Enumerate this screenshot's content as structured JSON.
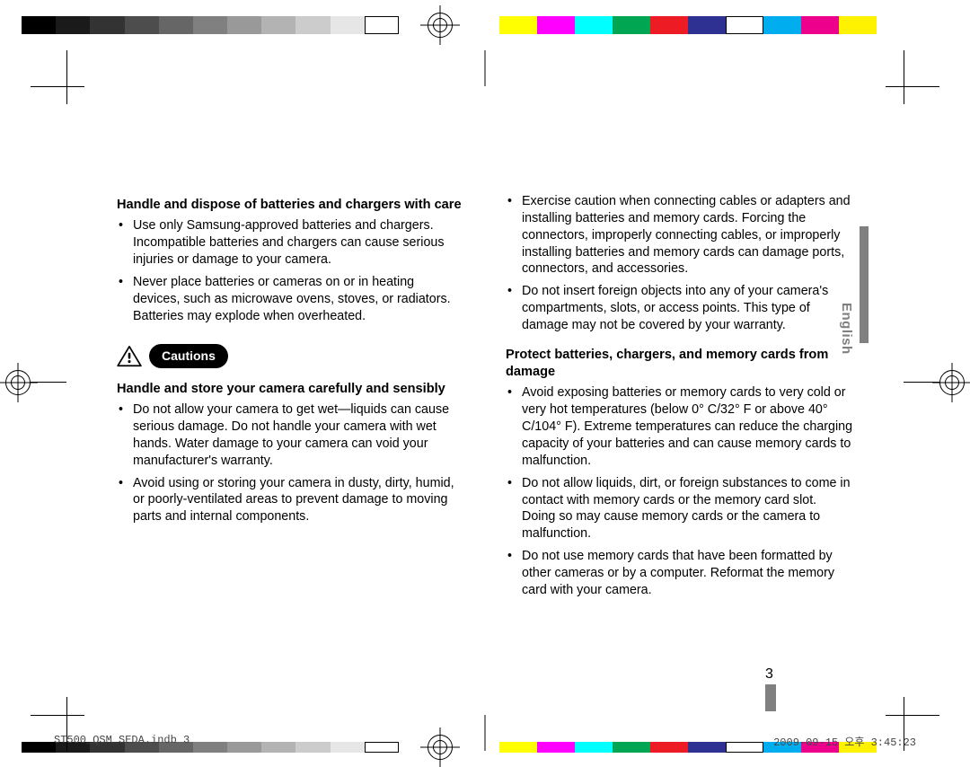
{
  "calibration": {
    "grayscale": [
      {
        "hex": "#000000",
        "w": 44
      },
      {
        "hex": "#1a1a1a",
        "w": 44
      },
      {
        "hex": "#333333",
        "w": 44
      },
      {
        "hex": "#4d4d4d",
        "w": 44
      },
      {
        "hex": "#666666",
        "w": 44
      },
      {
        "hex": "#808080",
        "w": 44
      },
      {
        "hex": "#999999",
        "w": 44
      },
      {
        "hex": "#b3b3b3",
        "w": 44
      },
      {
        "hex": "#cccccc",
        "w": 44
      },
      {
        "hex": "#e6e6e6",
        "w": 44
      },
      {
        "hex": "#ffffff",
        "w": 44,
        "border": "#000"
      }
    ],
    "color": [
      {
        "hex": "#ffff00",
        "w": 42
      },
      {
        "hex": "#ff00ff",
        "w": 42
      },
      {
        "hex": "#00ffff",
        "w": 42
      },
      {
        "hex": "#00a651",
        "w": 42
      },
      {
        "hex": "#ed1c24",
        "w": 42
      },
      {
        "hex": "#2e3192",
        "w": 42
      },
      {
        "hex": "#ffffff",
        "w": 42,
        "border": "#000"
      },
      {
        "hex": "#00aeef",
        "w": 42
      },
      {
        "hex": "#ec008c",
        "w": 42
      },
      {
        "hex": "#fff200",
        "w": 42
      }
    ]
  },
  "language_tab": "English",
  "page_number": "3",
  "footer": {
    "file": "ST500_QSM_SEDA.indb   3",
    "stamp": "2009-09-15   오후 3:45:23"
  },
  "cautions_label": "Cautions",
  "left": {
    "h1": "Handle and dispose of batteries and chargers with care",
    "b1": [
      "Use only Samsung-approved batteries and chargers. Incompatible batteries and chargers can cause serious injuries or damage to your camera.",
      "Never place batteries or cameras on or in heating devices, such as microwave ovens, stoves, or radiators. Batteries may explode when overheated."
    ],
    "h2": "Handle and store your camera carefully and sensibly",
    "b2": [
      "Do not allow your camera to get wet—liquids can cause serious damage. Do not handle your camera with wet hands. Water damage to your camera can void your manufacturer's warranty.",
      "Avoid using or storing your camera in dusty, dirty, humid, or poorly-ventilated areas to prevent damage to moving parts and internal components."
    ]
  },
  "right": {
    "b0": [
      "Exercise caution when connecting cables or adapters and installing batteries and memory cards. Forcing the connectors, improperly connecting cables, or improperly installing batteries and memory cards can damage ports, connectors, and accessories.",
      "Do not insert foreign objects into any of your camera's compartments, slots, or access points. This type of damage may not be covered by your warranty."
    ],
    "h3": "Protect batteries, chargers, and memory cards from damage",
    "b3": [
      "Avoid exposing batteries or memory cards to very cold or very hot temperatures (below 0° C/32° F or above 40° C/104° F). Extreme temperatures can reduce the charging capacity of your batteries and can cause memory cards to malfunction.",
      "Do not allow liquids, dirt, or foreign substances to come in contact with memory cards or the memory card slot. Doing so may cause memory cards or the camera to malfunction.",
      "Do not use memory cards that have been formatted by other cameras or by a computer. Reformat the memory card with your camera."
    ]
  }
}
